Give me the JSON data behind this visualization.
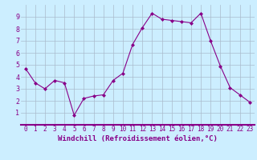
{
  "x": [
    0,
    1,
    2,
    3,
    4,
    5,
    6,
    7,
    8,
    9,
    10,
    11,
    12,
    13,
    14,
    15,
    16,
    17,
    18,
    19,
    20,
    21,
    22,
    23
  ],
  "y": [
    4.7,
    3.5,
    3.0,
    3.7,
    3.5,
    0.8,
    2.2,
    2.4,
    2.5,
    3.7,
    4.3,
    6.7,
    8.1,
    9.3,
    8.8,
    8.7,
    8.6,
    8.5,
    9.3,
    7.0,
    4.9,
    3.1,
    2.5,
    1.9
  ],
  "line_color": "#880088",
  "marker": "D",
  "marker_size": 2.0,
  "bg_color": "#cceeff",
  "grid_color": "#aabbcc",
  "xlabel": "Windchill (Refroidissement éolien,°C)",
  "xlim": [
    -0.5,
    23.5
  ],
  "ylim": [
    0,
    10
  ],
  "xticks": [
    0,
    1,
    2,
    3,
    4,
    5,
    6,
    7,
    8,
    9,
    10,
    11,
    12,
    13,
    14,
    15,
    16,
    17,
    18,
    19,
    20,
    21,
    22,
    23
  ],
  "yticks": [
    1,
    2,
    3,
    4,
    5,
    6,
    7,
    8,
    9
  ],
  "tick_color": "#880088",
  "label_color": "#880088",
  "spine_color": "#880088",
  "axis_bg": "#cceeff",
  "xlabel_fontsize": 6.5,
  "tick_fontsize": 5.5
}
